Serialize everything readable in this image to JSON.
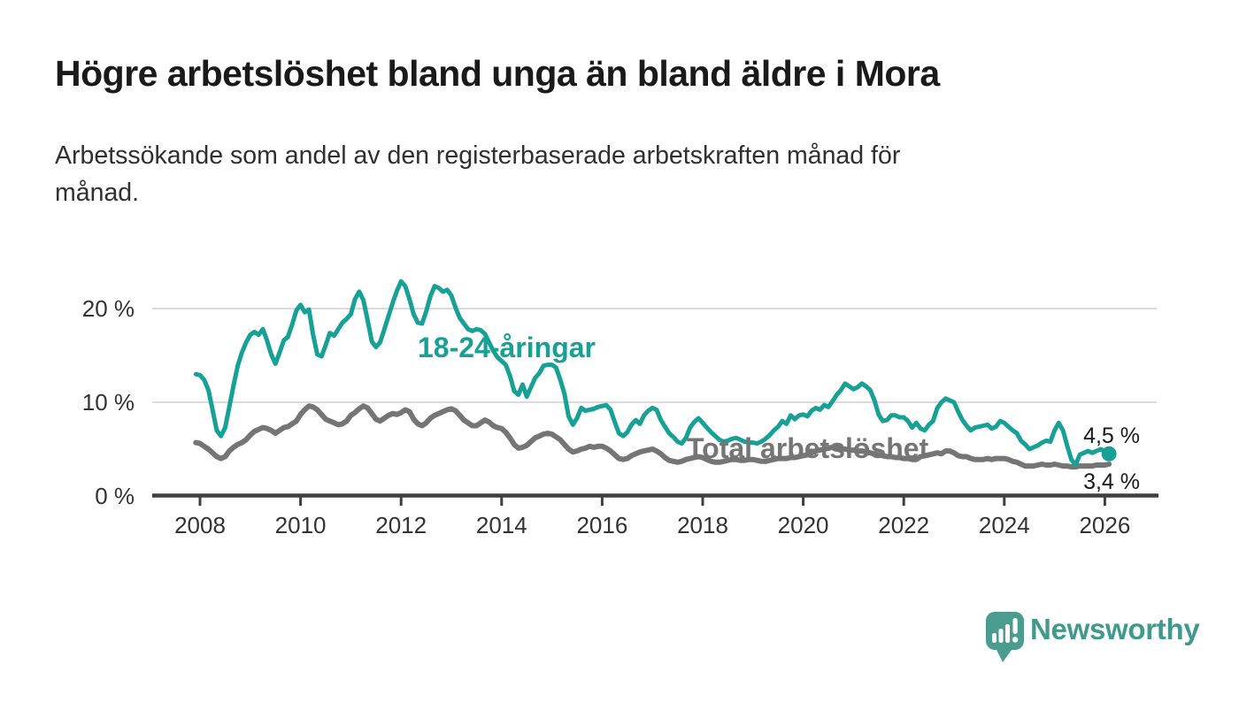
{
  "header": {
    "title": "Högre arbetslöshet bland unga än bland äldre i Mora",
    "subtitle_lines": [
      "Arbetssökande som andel av den registerbaserade arbetskraften månad för",
      "månad."
    ]
  },
  "footer": {
    "brand": "Newsworthy",
    "logo_icon": "speech-bubble-bar-chart-exclamation"
  },
  "colors": {
    "young_series": "#16a096",
    "total_series": "#757575",
    "axis": "#3f3f3f",
    "gridline": "#dbdbdb",
    "value_label": "#1a1a1a",
    "tick_text": "#333333",
    "logo_teal": "#4a9c8e",
    "background": "#ffffff"
  },
  "chart_data": {
    "type": "line",
    "title": "Högre arbetslöshet bland unga än bland äldre i Mora",
    "subtitle": "Arbetssökande som andel av den registerbaserade arbetskraften månad för månad.",
    "xlabel": "",
    "ylabel": "",
    "grid": "horizontal",
    "legend_position": "inline-labels",
    "x_axis": {
      "ticks": [
        2008,
        2010,
        2012,
        2014,
        2016,
        2018,
        2020,
        2022,
        2024,
        2026
      ],
      "range": [
        2007.9,
        2027.0
      ]
    },
    "y_axis": {
      "ticks": [
        0,
        10,
        20
      ],
      "tick_labels": [
        "0 %",
        "10 %",
        "20 %"
      ],
      "range": [
        0,
        24
      ],
      "unit": "%"
    },
    "series": [
      {
        "name": "Total arbetslöshet",
        "color": "#757575",
        "end_label": "3,4 %",
        "end_value": 3.4,
        "end_dot": false,
        "start": 2007.9167,
        "step": 0.0833333,
        "values": [
          5.7,
          5.6,
          5.3,
          5.0,
          4.6,
          4.2,
          4.0,
          4.2,
          4.8,
          5.2,
          5.5,
          5.7,
          6.0,
          6.5,
          6.9,
          7.1,
          7.3,
          7.2,
          7.0,
          6.7,
          7.0,
          7.3,
          7.4,
          7.7,
          8.0,
          8.7,
          9.2,
          9.6,
          9.5,
          9.2,
          8.7,
          8.2,
          8.0,
          7.8,
          7.6,
          7.7,
          8.0,
          8.6,
          8.9,
          9.3,
          9.6,
          9.4,
          8.8,
          8.2,
          8.0,
          8.3,
          8.6,
          8.8,
          8.7,
          8.9,
          9.2,
          9.0,
          8.2,
          7.7,
          7.5,
          7.8,
          8.3,
          8.6,
          8.8,
          9.0,
          9.2,
          9.3,
          9.1,
          8.6,
          8.1,
          7.8,
          7.5,
          7.5,
          7.8,
          8.1,
          7.9,
          7.5,
          7.3,
          7.2,
          6.8,
          6.2,
          5.5,
          5.1,
          5.2,
          5.4,
          5.8,
          6.2,
          6.4,
          6.6,
          6.7,
          6.6,
          6.3,
          6.0,
          5.5,
          5.0,
          4.7,
          4.8,
          5.0,
          5.1,
          5.3,
          5.2,
          5.3,
          5.3,
          5.1,
          4.8,
          4.4,
          4.0,
          3.9,
          4.0,
          4.3,
          4.5,
          4.7,
          4.8,
          4.9,
          5.0,
          4.8,
          4.5,
          4.1,
          3.8,
          3.7,
          3.6,
          3.7,
          3.9,
          4.0,
          4.1,
          4.2,
          4.1,
          3.9,
          3.7,
          3.6,
          3.6,
          3.7,
          3.8,
          3.9,
          3.9,
          3.8,
          3.8,
          3.9,
          3.9,
          3.8,
          3.7,
          3.7,
          3.8,
          3.9,
          4.0,
          4.0,
          4.0,
          4.1,
          4.1,
          4.2,
          4.3,
          4.4,
          4.6,
          4.8,
          4.9,
          5.0,
          5.1,
          5.2,
          5.2,
          5.1,
          5.0,
          4.9,
          4.9,
          4.8,
          4.8,
          4.7,
          4.6,
          4.5,
          4.4,
          4.3,
          4.2,
          4.2,
          4.1,
          4.1,
          4.0,
          4.0,
          3.9,
          3.9,
          4.2,
          4.3,
          4.4,
          4.5,
          4.6,
          4.5,
          4.8,
          4.8,
          4.6,
          4.3,
          4.2,
          4.2,
          4.0,
          3.9,
          3.9,
          3.9,
          4.0,
          3.9,
          4.0,
          4.0,
          4.0,
          3.9,
          3.7,
          3.6,
          3.4,
          3.2,
          3.2,
          3.2,
          3.3,
          3.4,
          3.3,
          3.3,
          3.4,
          3.3,
          3.2,
          3.2,
          3.1,
          3.1,
          3.2,
          3.2,
          3.2,
          3.2,
          3.3,
          3.3,
          3.3,
          3.4
        ]
      },
      {
        "name": "18-24-åringar",
        "color": "#16a096",
        "end_label": "4,5 %",
        "end_value": 4.5,
        "end_dot": true,
        "start": 2007.9167,
        "step": 0.0833333,
        "values": [
          13.0,
          12.9,
          12.4,
          11.3,
          9.2,
          7.0,
          6.4,
          7.3,
          9.5,
          11.8,
          13.9,
          15.3,
          16.4,
          17.2,
          17.5,
          17.2,
          17.8,
          16.6,
          15.1,
          14.1,
          15.3,
          16.6,
          17.0,
          18.3,
          19.8,
          20.4,
          19.6,
          19.9,
          17.2,
          15.1,
          14.9,
          16.1,
          17.4,
          17.1,
          17.8,
          18.5,
          18.9,
          19.4,
          21.0,
          21.8,
          20.9,
          18.8,
          16.5,
          15.9,
          16.4,
          17.8,
          19.2,
          20.6,
          21.9,
          22.9,
          22.4,
          21.0,
          19.4,
          18.5,
          18.4,
          19.7,
          21.3,
          22.4,
          22.2,
          21.8,
          22.0,
          21.4,
          20.1,
          19.0,
          18.4,
          17.8,
          17.6,
          17.8,
          17.7,
          17.3,
          16.4,
          15.5,
          14.8,
          14.4,
          14.0,
          12.8,
          11.2,
          10.8,
          11.9,
          10.6,
          11.6,
          12.6,
          13.1,
          13.9,
          14.0,
          14.0,
          13.7,
          12.4,
          10.9,
          8.5,
          7.6,
          8.3,
          9.4,
          9.1,
          9.2,
          9.3,
          9.5,
          9.6,
          9.7,
          9.2,
          7.9,
          6.7,
          6.4,
          6.8,
          7.6,
          8.1,
          7.7,
          8.6,
          9.1,
          9.4,
          9.2,
          8.1,
          7.4,
          6.7,
          6.3,
          5.8,
          5.6,
          6.2,
          7.3,
          7.9,
          8.3,
          7.8,
          7.3,
          6.8,
          6.4,
          6.0,
          5.8,
          5.9,
          6.1,
          6.2,
          6.0,
          5.8,
          5.7,
          5.7,
          5.6,
          5.8,
          6.1,
          6.5,
          7.0,
          7.4,
          8.0,
          7.7,
          8.6,
          8.2,
          8.6,
          8.7,
          8.5,
          9.1,
          9.4,
          9.2,
          9.7,
          9.5,
          10.1,
          10.8,
          11.3,
          12.0,
          11.7,
          11.4,
          11.6,
          12.0,
          11.7,
          11.3,
          10.2,
          8.7,
          8.0,
          8.1,
          8.6,
          8.6,
          8.4,
          8.4,
          8.0,
          7.3,
          7.8,
          7.2,
          7.0,
          7.6,
          8.0,
          9.4,
          10.0,
          10.4,
          10.2,
          10.0,
          9.0,
          8.1,
          7.5,
          7.0,
          7.3,
          7.4,
          7.5,
          7.6,
          7.2,
          7.4,
          8.0,
          7.8,
          7.4,
          7.0,
          6.7,
          5.9,
          5.5,
          5.0,
          5.2,
          5.4,
          5.7,
          5.9,
          5.8,
          7.0,
          7.8,
          7.0,
          5.4,
          3.9,
          3.3,
          4.4,
          4.6,
          4.8,
          4.6,
          4.8,
          5.0,
          4.8,
          4.5
        ]
      }
    ]
  }
}
